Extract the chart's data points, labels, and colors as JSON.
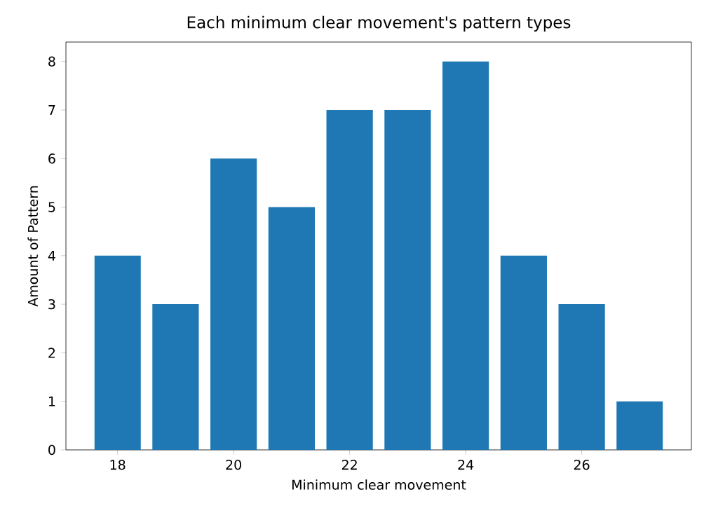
{
  "chart_data": {
    "type": "bar",
    "title": "Each minimum clear movement's pattern types",
    "xlabel": "Minimum clear movement",
    "ylabel": "Amount of Pattern",
    "x": [
      18,
      19,
      20,
      21,
      22,
      23,
      24,
      25,
      26,
      27
    ],
    "values": [
      4,
      3,
      6,
      5,
      7,
      7,
      8,
      4,
      3,
      1
    ],
    "color": "#1f77b4",
    "xlim": [
      17.11,
      27.89
    ],
    "ylim": [
      0,
      8.4
    ],
    "xticks": [
      18,
      20,
      22,
      24,
      26
    ],
    "yticks": [
      0,
      1,
      2,
      3,
      4,
      5,
      6,
      7,
      8
    ]
  }
}
